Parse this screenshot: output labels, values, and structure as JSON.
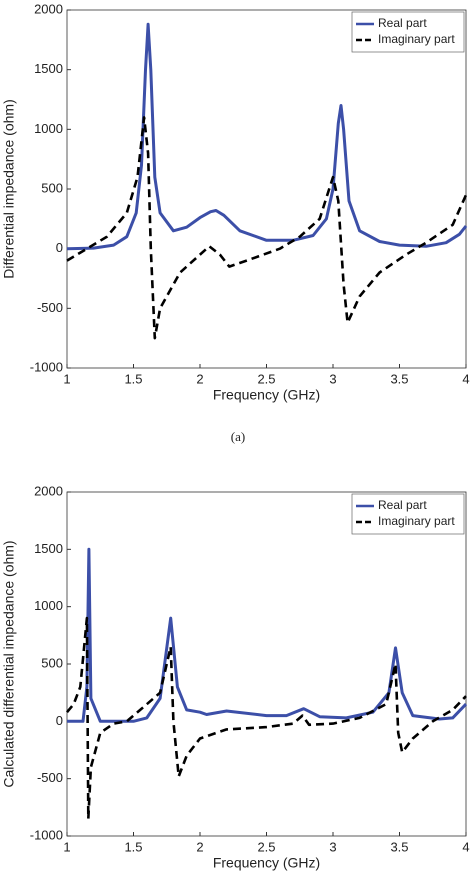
{
  "caption": "(a)",
  "chart_data": [
    {
      "type": "line",
      "xlabel": "Frequency (GHz)",
      "ylabel": "Differential impedance (ohm)",
      "xlim": [
        1,
        4
      ],
      "xticks": [
        1,
        1.5,
        2,
        2.5,
        3,
        3.5,
        4
      ],
      "ylim": [
        -1000,
        2000
      ],
      "yticks": [
        -1000,
        -500,
        0,
        500,
        1000,
        1500,
        2000
      ],
      "legend": "upper right",
      "series": [
        {
          "name": "Real part",
          "color": "#3c4fa8",
          "dash": "solid",
          "x": [
            1,
            1.2,
            1.35,
            1.45,
            1.52,
            1.56,
            1.59,
            1.61,
            1.63,
            1.66,
            1.7,
            1.8,
            1.9,
            2.0,
            2.08,
            2.12,
            2.18,
            2.3,
            2.5,
            2.7,
            2.85,
            2.95,
            3.0,
            3.04,
            3.06,
            3.08,
            3.12,
            3.2,
            3.35,
            3.5,
            3.7,
            3.85,
            3.95,
            4.0
          ],
          "values": [
            0,
            5,
            30,
            100,
            300,
            700,
            1500,
            1880,
            1500,
            600,
            300,
            150,
            180,
            260,
            310,
            320,
            280,
            150,
            70,
            70,
            110,
            250,
            500,
            1050,
            1200,
            1000,
            400,
            150,
            60,
            30,
            20,
            50,
            120,
            190
          ]
        },
        {
          "name": "Imaginary part",
          "color": "#000000",
          "dash": "dashed",
          "x": [
            1,
            1.15,
            1.3,
            1.45,
            1.53,
            1.58,
            1.61,
            1.63,
            1.66,
            1.7,
            1.85,
            2.0,
            2.07,
            2.15,
            2.22,
            2.35,
            2.6,
            2.75,
            2.9,
            3.0,
            3.04,
            3.08,
            3.11,
            3.2,
            3.35,
            3.55,
            3.7,
            3.9,
            4.0
          ],
          "values": [
            -100,
            0,
            100,
            300,
            600,
            1100,
            800,
            0,
            -750,
            -500,
            -200,
            -50,
            20,
            -50,
            -150,
            -100,
            0,
            100,
            250,
            600,
            400,
            -300,
            -620,
            -400,
            -200,
            -50,
            50,
            200,
            450
          ]
        }
      ]
    },
    {
      "type": "line",
      "xlabel": "Frequency (GHz)",
      "ylabel": "Calculated differential impedance (ohm)",
      "xlim": [
        1,
        4
      ],
      "xticks": [
        1,
        1.5,
        2,
        2.5,
        3,
        3.5,
        4
      ],
      "ylim": [
        -1000,
        2000
      ],
      "yticks": [
        -1000,
        -500,
        0,
        500,
        1000,
        1500,
        2000
      ],
      "legend": "upper right",
      "series": [
        {
          "name": "Real part",
          "color": "#3c4fa8",
          "dash": "solid",
          "x": [
            1,
            1.12,
            1.15,
            1.165,
            1.18,
            1.25,
            1.5,
            1.6,
            1.7,
            1.78,
            1.83,
            1.9,
            2.0,
            2.05,
            2.2,
            2.5,
            2.65,
            2.78,
            2.9,
            3.1,
            3.3,
            3.42,
            3.47,
            3.52,
            3.6,
            3.8,
            3.9,
            4.0
          ],
          "values": [
            0,
            0,
            300,
            1500,
            200,
            0,
            0,
            30,
            200,
            900,
            300,
            100,
            80,
            60,
            90,
            50,
            50,
            110,
            40,
            30,
            80,
            250,
            640,
            250,
            50,
            20,
            30,
            150
          ]
        },
        {
          "name": "Imaginary part",
          "color": "#000000",
          "dash": "dashed",
          "x": [
            1,
            1.05,
            1.1,
            1.15,
            1.16,
            1.18,
            1.25,
            1.35,
            1.45,
            1.55,
            1.7,
            1.78,
            1.8,
            1.84,
            1.9,
            2.0,
            2.2,
            2.5,
            2.7,
            2.77,
            2.82,
            3.0,
            3.2,
            3.4,
            3.47,
            3.49,
            3.52,
            3.6,
            3.75,
            3.9,
            4.0
          ],
          "values": [
            80,
            150,
            300,
            900,
            -850,
            -400,
            -100,
            -20,
            0,
            100,
            250,
            650,
            0,
            -480,
            -300,
            -150,
            -70,
            -50,
            -20,
            50,
            -30,
            -20,
            30,
            150,
            500,
            -100,
            -270,
            -150,
            0,
            100,
            220
          ]
        }
      ]
    }
  ]
}
